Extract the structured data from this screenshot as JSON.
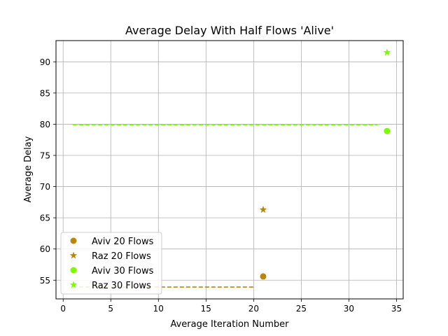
{
  "chart_data": {
    "type": "scatter",
    "title": "Average Delay With Half Flows 'Alive'",
    "xlabel": "Average Iteration Number",
    "ylabel": "Average Delay",
    "xlim": [
      -0.75,
      35.7
    ],
    "ylim": [
      52.0,
      93.4
    ],
    "xticks": [
      0,
      5,
      10,
      15,
      20,
      25,
      30,
      35
    ],
    "yticks": [
      55,
      60,
      65,
      70,
      75,
      80,
      85,
      90
    ],
    "grid": true,
    "legend_position": "lower-left",
    "series": [
      {
        "name": "Aviv 20 Flows",
        "marker": "circle",
        "color": "#b8860b",
        "points": [
          {
            "x": 21,
            "y": 55.6
          }
        ]
      },
      {
        "name": "Raz 20 Flows",
        "marker": "star",
        "color": "#b8860b",
        "points": [
          {
            "x": 21,
            "y": 66.3
          }
        ]
      },
      {
        "name": "Aviv 30 Flows",
        "marker": "circle",
        "color": "#7cfc00",
        "points": [
          {
            "x": 34,
            "y": 78.9
          }
        ]
      },
      {
        "name": "Raz 30 Flows",
        "marker": "star",
        "color": "#7cfc00",
        "points": [
          {
            "x": 34,
            "y": 91.5
          }
        ]
      }
    ],
    "reference_lines": [
      {
        "color": "#b8860b",
        "style": "dashed",
        "x": [
          1,
          20
        ],
        "y": 53.9
      },
      {
        "color": "#7cfc00",
        "style": "dashed",
        "x": [
          1,
          33
        ],
        "y": 79.9
      }
    ]
  }
}
